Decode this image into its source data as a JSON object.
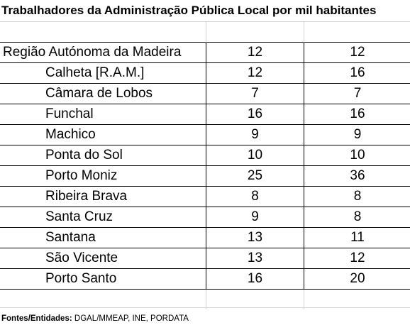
{
  "title": "Trabalhadores da Administração Pública Local por mil habitantes",
  "rows": [
    {
      "label": "Região Autónoma da Madeira",
      "v1": "12",
      "v2": "12",
      "kind": "region"
    },
    {
      "label": "Calheta [R.A.M.]",
      "v1": "12",
      "v2": "16",
      "kind": "sub"
    },
    {
      "label": "Câmara de Lobos",
      "v1": "7",
      "v2": "7",
      "kind": "sub"
    },
    {
      "label": "Funchal",
      "v1": "16",
      "v2": "16",
      "kind": "sub"
    },
    {
      "label": "Machico",
      "v1": "9",
      "v2": "9",
      "kind": "sub"
    },
    {
      "label": "Ponta do Sol",
      "v1": "10",
      "v2": "10",
      "kind": "sub"
    },
    {
      "label": "Porto Moniz",
      "v1": "25",
      "v2": "36",
      "kind": "sub"
    },
    {
      "label": "Ribeira Brava",
      "v1": "8",
      "v2": "8",
      "kind": "sub"
    },
    {
      "label": "Santa Cruz",
      "v1": "9",
      "v2": "8",
      "kind": "sub"
    },
    {
      "label": "Santana",
      "v1": "13",
      "v2": "11",
      "kind": "sub"
    },
    {
      "label": "São Vicente",
      "v1": "13",
      "v2": "12",
      "kind": "sub"
    },
    {
      "label": "Porto Santo",
      "v1": "16",
      "v2": "20",
      "kind": "sub"
    }
  ],
  "footer": {
    "label": "Fontes/Entidades:",
    "sources": " DGAL/MMEAP, INE, PORDATA"
  }
}
